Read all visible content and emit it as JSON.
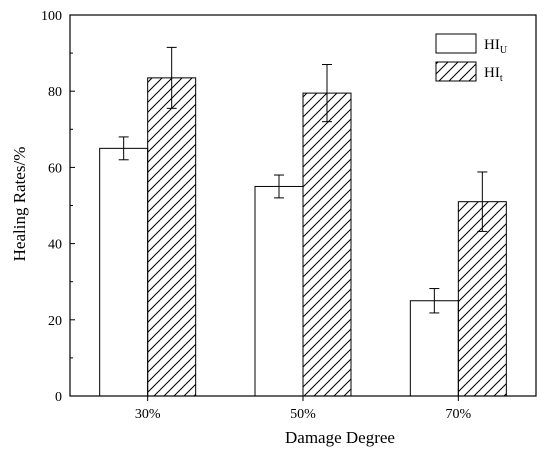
{
  "chart_data": {
    "type": "bar",
    "xlabel": "Damage Degree",
    "ylabel": "Healing Rates/%",
    "ylim": [
      0,
      100
    ],
    "yticks": [
      0,
      20,
      40,
      60,
      80,
      100
    ],
    "categories": [
      "30%",
      "50%",
      "70%"
    ],
    "grid": false,
    "legend_position": "top-right",
    "series": [
      {
        "name": "HI",
        "name_subscript": "U",
        "fill": "blank",
        "values": [
          65,
          55,
          25
        ],
        "errors": [
          3,
          3,
          3.2
        ]
      },
      {
        "name": "HI",
        "name_subscript": "t",
        "fill": "hatched",
        "values": [
          83.5,
          79.5,
          51
        ],
        "errors": [
          8,
          7.5,
          7.8
        ]
      }
    ]
  }
}
